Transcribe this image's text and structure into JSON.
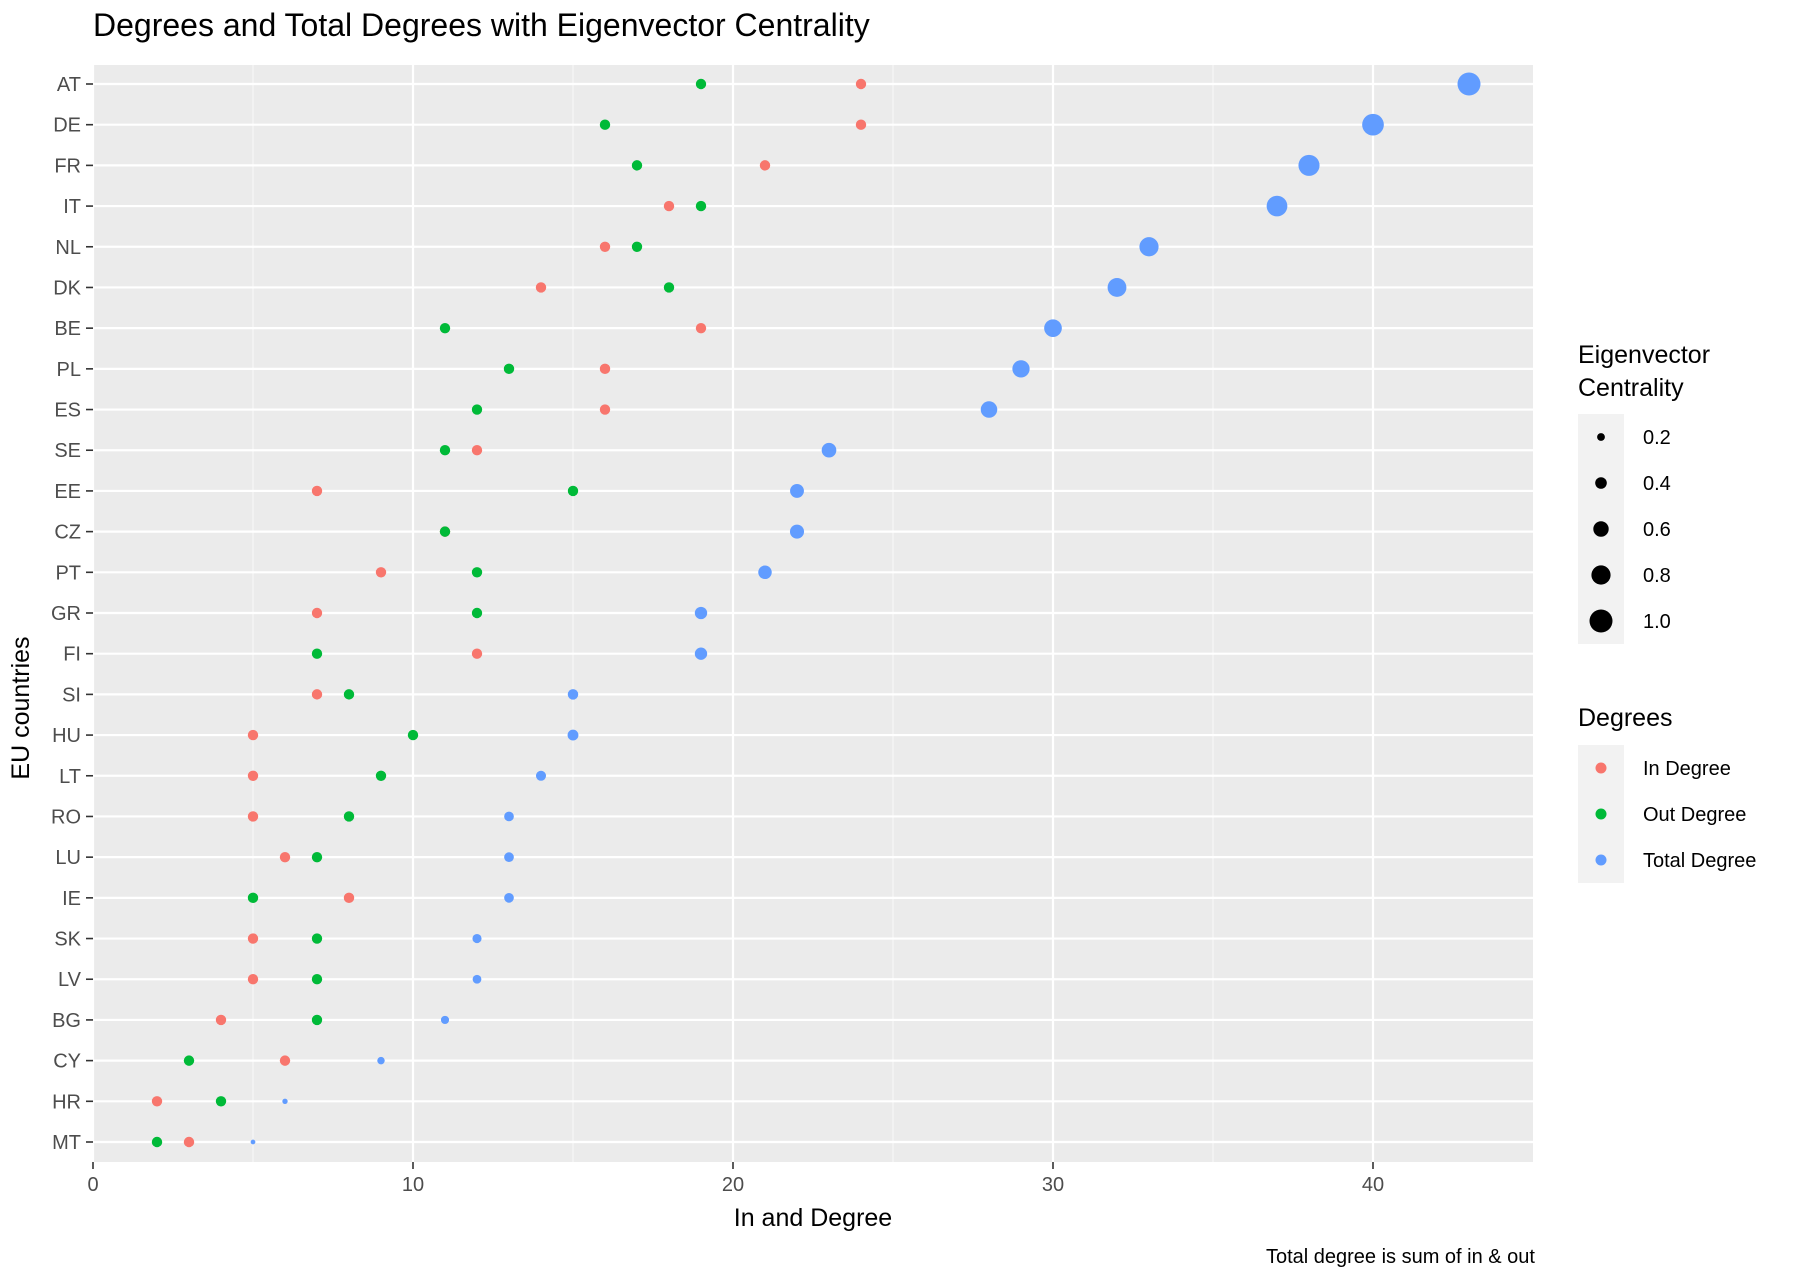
{
  "chart_data": {
    "type": "scatter",
    "title": "Degrees and Total Degrees with Eigenvector Centrality",
    "xlabel": "In and Degree",
    "ylabel": "EU countries",
    "caption": "Total degree is sum of in & out",
    "xlim": [
      0,
      45
    ],
    "x_ticks": [
      0,
      10,
      20,
      30,
      40
    ],
    "grid": true,
    "categories": [
      "AT",
      "DE",
      "FR",
      "IT",
      "NL",
      "DK",
      "BE",
      "PL",
      "ES",
      "SE",
      "EE",
      "CZ",
      "PT",
      "GR",
      "FI",
      "SI",
      "HU",
      "LT",
      "RO",
      "LU",
      "IE",
      "SK",
      "LV",
      "BG",
      "CY",
      "HR",
      "MT"
    ],
    "series": [
      {
        "name": "In Degree",
        "color": "#F8766D",
        "values": [
          24,
          24,
          21,
          18,
          16,
          14,
          19,
          16,
          16,
          12,
          7,
          11,
          9,
          7,
          12,
          7,
          5,
          5,
          5,
          6,
          8,
          5,
          5,
          4,
          6,
          2,
          3
        ]
      },
      {
        "name": "Out Degree",
        "color": "#00BA38",
        "values": [
          19,
          16,
          17,
          19,
          17,
          18,
          11,
          13,
          12,
          11,
          15,
          11,
          12,
          12,
          7,
          8,
          10,
          9,
          8,
          7,
          5,
          7,
          7,
          7,
          3,
          4,
          2
        ]
      },
      {
        "name": "Total Degree",
        "color": "#619CFF",
        "values": [
          43,
          40,
          38,
          37,
          33,
          32,
          30,
          29,
          28,
          23,
          22,
          22,
          21,
          19,
          19,
          15,
          15,
          14,
          13,
          13,
          13,
          12,
          12,
          11,
          9,
          6,
          5
        ]
      }
    ],
    "eigenvector_centrality": [
      1.0,
      0.93,
      0.9,
      0.88,
      0.8,
      0.78,
      0.72,
      0.7,
      0.66,
      0.56,
      0.52,
      0.53,
      0.5,
      0.44,
      0.44,
      0.34,
      0.36,
      0.32,
      0.3,
      0.3,
      0.3,
      0.27,
      0.25,
      0.22,
      0.18,
      0.07,
      0.04
    ],
    "legend_size": {
      "title_lines": [
        "Eigenvector",
        "Centrality"
      ],
      "values": [
        0.2,
        0.4,
        0.6,
        0.8,
        1.0
      ],
      "labels": [
        "0.2",
        "0.4",
        "0.6",
        "0.8",
        "1.0"
      ]
    },
    "legend_color": {
      "title": "Degrees",
      "labels": [
        "In Degree",
        "Out Degree",
        "Total Degree"
      ]
    },
    "legend_placement": "right"
  }
}
